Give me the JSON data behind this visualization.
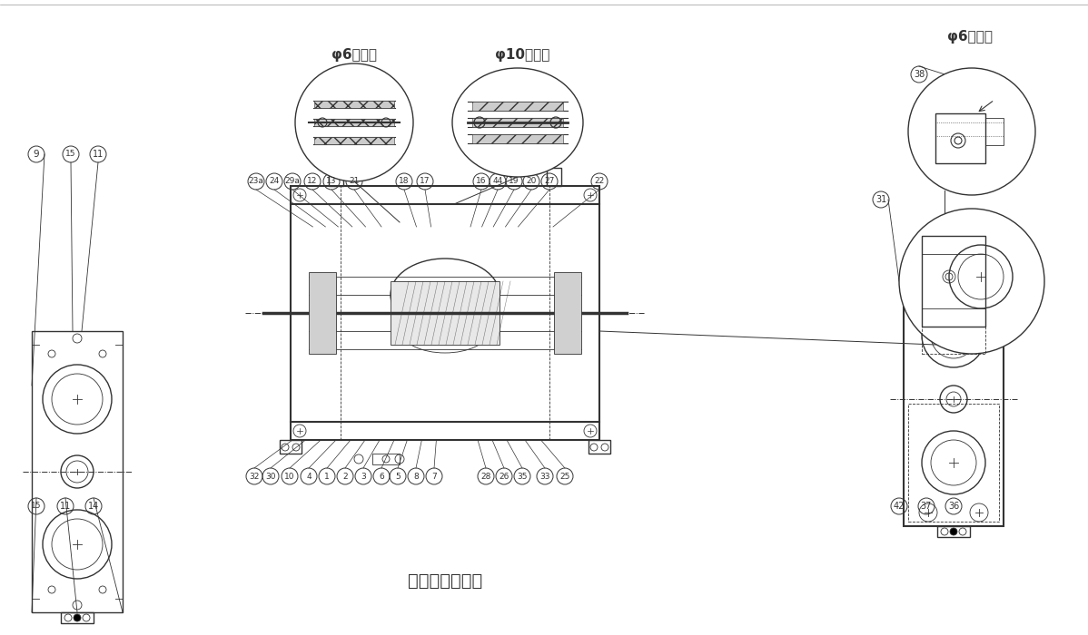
{
  "bg_color": "#ffffff",
  "line_color": "#333333",
  "title_bottom": "ダンパボルト付",
  "label_top_left": "φ6の場合",
  "label_top_center": "φ10の場合",
  "label_top_right": "φ6の場合",
  "part_numbers_top": [
    "23a",
    "24",
    "29a",
    "12",
    "13",
    "21",
    "18",
    "17",
    "16",
    "44",
    "19",
    "20",
    "27",
    "22"
  ],
  "part_numbers_bottom": [
    "32",
    "30",
    "10",
    "4",
    "1",
    "2",
    "3",
    "6",
    "5",
    "8",
    "7",
    "28",
    "26",
    "35",
    "33",
    "25"
  ],
  "part_numbers_left": [
    "9",
    "15",
    "11",
    "15",
    "11",
    "14"
  ],
  "part_numbers_right": [
    "31",
    "42",
    "37",
    "36"
  ],
  "part_number_38": "38"
}
